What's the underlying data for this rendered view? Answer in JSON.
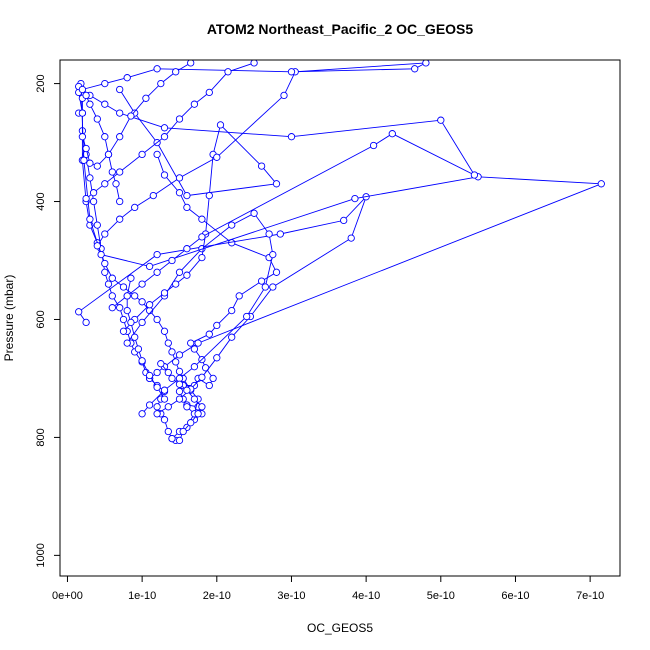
{
  "chart_data": {
    "type": "line",
    "title": "ATOM2 Northeast_Pacific_2 OC_GEOS5",
    "xlabel": "OC_GEOS5",
    "ylabel": "Pressure (mbar)",
    "xlim": [
      -1e-11,
      7.4e-10
    ],
    "ylim": [
      1035,
      160
    ],
    "y_reversed": true,
    "x_ticks": [
      0,
      1e-10,
      2e-10,
      3e-10,
      4e-10,
      5e-10,
      6e-10,
      7e-10
    ],
    "x_tick_labels": [
      "0e+00",
      "1e-10",
      "2e-10",
      "3e-10",
      "4e-10",
      "5e-10",
      "6e-10",
      "7e-10"
    ],
    "y_ticks": [
      200,
      400,
      600,
      800,
      1000
    ],
    "y_tick_labels": [
      "200",
      "400",
      "600",
      "800",
      "1000"
    ],
    "series_color": "#0000ff",
    "marker": "open-circle",
    "grid": false,
    "legend": "none",
    "series": [
      {
        "x": [
          1.45e-10,
          1.4e-10,
          1.5e-10,
          1.6e-10,
          1.7e-10,
          1.8e-10,
          1.75e-10,
          1.6e-10,
          1.55e-10,
          1.5e-10,
          1.55e-10,
          1.7e-10,
          1.75e-10,
          1.9e-10,
          1.95e-10,
          1.85e-10,
          1.8e-10,
          1.7e-10,
          1.65e-10,
          1.9e-10,
          2e-10,
          2.2e-10,
          2.3e-10,
          2.6e-10,
          2.8e-10,
          2.7e-10,
          2.2e-10,
          1.8e-10,
          1.6e-10,
          1.5e-10,
          1.3e-10,
          1.2e-10
        ],
        "y": [
          805,
          802,
          790,
          783,
          770,
          760,
          748,
          745,
          735,
          722,
          712,
          712,
          700,
          712,
          700,
          682,
          668,
          650,
          640,
          625,
          610,
          585,
          560,
          535,
          520,
          495,
          470,
          430,
          410,
          385,
          355,
          320
        ]
      },
      {
        "x": [
          1.4e-10,
          1.35e-10,
          1.3e-10,
          1.25e-10,
          1.2e-10,
          1.25e-10,
          1.3e-10,
          1.2e-10,
          1.1e-10,
          1.05e-10,
          1e-10,
          9e-11,
          8.5e-11,
          8e-11,
          7.5e-11,
          7e-11,
          6e-11,
          5.5e-11,
          5e-11,
          4.5e-11,
          4e-11,
          3.5e-11,
          3e-11,
          2.5e-11,
          2e-11
        ],
        "y": [
          802,
          790,
          770,
          760,
          748,
          735,
          722,
          712,
          700,
          690,
          672,
          655,
          640,
          620,
          600,
          580,
          560,
          540,
          520,
          480,
          440,
          400,
          360,
          320,
          280
        ]
      },
      {
        "x": [
          1.6e-10,
          1.7e-10,
          1.75e-10,
          1.65e-10,
          1.55e-10,
          1.5e-10,
          1.45e-10,
          1.4e-10,
          1.35e-10,
          1.3e-10,
          1.2e-10,
          1.1e-10,
          1e-10,
          9e-11,
          7.5e-11,
          6e-11,
          5e-11,
          4e-11,
          3e-11,
          2.5e-11,
          2e-11,
          2e-11,
          1.5e-11
        ],
        "y": [
          748,
          760,
          735,
          720,
          700,
          688,
          672,
          655,
          640,
          620,
          600,
          585,
          570,
          560,
          545,
          530,
          505,
          470,
          440,
          400,
          330,
          250,
          215
        ]
      },
      {
        "x": [
          1.2e-10,
          1.35e-10,
          1.5e-10,
          1.65e-10,
          1.8e-10,
          2e-10,
          2.2e-10,
          2.45e-10,
          2.75e-10,
          3.8e-10,
          4e-10,
          3.7e-10,
          2.85e-10,
          1.2e-10,
          1.5e-11,
          2.5e-11
        ],
        "y": [
          760,
          748,
          735,
          718,
          698,
          665,
          630,
          595,
          545,
          462,
          392,
          432,
          455,
          490,
          587,
          605
        ]
      },
      {
        "x": [
          1e-10,
          1.1e-10,
          1.3e-10,
          1.5e-10,
          1.7e-10,
          2.4e-10,
          2.65e-10,
          2.75e-10,
          2.7e-10,
          2.5e-10,
          2.2e-10,
          1.8e-10,
          1.5e-10,
          1.3e-10,
          1e-10,
          8e-11
        ],
        "y": [
          760,
          745,
          720,
          700,
          680,
          595,
          545,
          490,
          455,
          420,
          440,
          480,
          520,
          560,
          605,
          640
        ]
      },
      {
        "x": [
          1.1e-10,
          1.2e-10,
          1.3e-10,
          1.5e-10,
          1.75e-10,
          7.15e-10,
          5.5e-10,
          3.85e-10,
          1.1e-10,
          4.5e-11,
          3e-11,
          2.2e-11,
          1.8e-11
        ],
        "y": [
          700,
          690,
          680,
          660,
          640,
          370,
          358,
          395,
          510,
          490,
          430,
          330,
          200
        ]
      },
      {
        "x": [
          7.5e-11,
          9e-11,
          1.1e-10,
          1.3e-10,
          1.45e-10,
          1.6e-10,
          1.8e-10,
          1.85e-10,
          1.9e-10,
          1.95e-10,
          2.05e-10,
          2.6e-10,
          2.8e-10,
          1.6e-10,
          1.2e-10,
          9e-11,
          7e-11
        ],
        "y": [
          620,
          600,
          575,
          555,
          540,
          525,
          495,
          455,
          390,
          320,
          270,
          340,
          370,
          390,
          300,
          250,
          210
        ]
      },
      {
        "x": [
          6e-11,
          8e-11,
          1e-10,
          1.2e-10,
          1.4e-10,
          1.6e-10,
          1.8e-10,
          4.1e-10,
          4.35e-10,
          5.45e-10,
          5e-10,
          3e-10,
          1.3e-10,
          7e-11,
          5e-11,
          3e-11,
          1.5e-11
        ],
        "y": [
          580,
          560,
          540,
          520,
          500,
          480,
          460,
          305,
          285,
          355,
          262,
          290,
          275,
          250,
          235,
          220,
          205
        ]
      },
      {
        "x": [
          4e-11,
          5e-11,
          7e-11,
          9e-11,
          1.15e-10,
          1.5e-10,
          2e-10,
          2.9e-10,
          3.05e-10,
          4.8e-10,
          4.65e-10,
          3e-10,
          1.2e-10,
          8e-11,
          5e-11,
          2e-11
        ],
        "y": [
          475,
          455,
          430,
          410,
          390,
          360,
          325,
          220,
          180,
          165,
          175,
          180,
          175,
          190,
          200,
          210
        ]
      },
      {
        "x": [
          2.5e-11,
          3.5e-11,
          5e-11,
          7e-11,
          1e-10,
          1.3e-10,
          1.5e-10,
          1.7e-10,
          1.9e-10,
          2.15e-10,
          2.5e-10
        ],
        "y": [
          395,
          385,
          370,
          350,
          320,
          290,
          260,
          235,
          215,
          180,
          165
        ]
      },
      {
        "x": [
          2e-11,
          2.5e-11,
          3e-11,
          4e-11,
          5.5e-11,
          7e-11,
          8.5e-11,
          1.05e-10,
          1.25e-10,
          1.45e-10,
          1.65e-10
        ],
        "y": [
          290,
          310,
          335,
          340,
          320,
          290,
          255,
          225,
          200,
          180,
          165
        ]
      },
      {
        "x": [
          1.5e-11,
          2e-11,
          2e-11,
          2.5e-11,
          3e-11,
          4e-11,
          5e-11,
          5.5e-11,
          6e-11,
          6.5e-11,
          7e-11
        ],
        "y": [
          250,
          250,
          225,
          220,
          235,
          260,
          290,
          320,
          350,
          370,
          400
        ]
      },
      {
        "x": [
          1.5e-10,
          1.55e-10,
          1.65e-10,
          1.75e-10,
          1.8e-10,
          1.7e-10,
          1.6e-10,
          1.5e-10,
          1.4e-10,
          1.35e-10,
          1.25e-10
        ],
        "y": [
          805,
          790,
          775,
          760,
          748,
          735,
          720,
          710,
          700,
          690,
          675
        ]
      },
      {
        "x": [
          1.3e-10,
          1.2e-10,
          1.1e-10,
          1e-10,
          9.5e-11,
          9e-11,
          8.5e-11,
          8e-11,
          8e-11,
          8.5e-11
        ],
        "y": [
          735,
          715,
          695,
          670,
          650,
          630,
          605,
          585,
          560,
          530
        ]
      }
    ]
  }
}
